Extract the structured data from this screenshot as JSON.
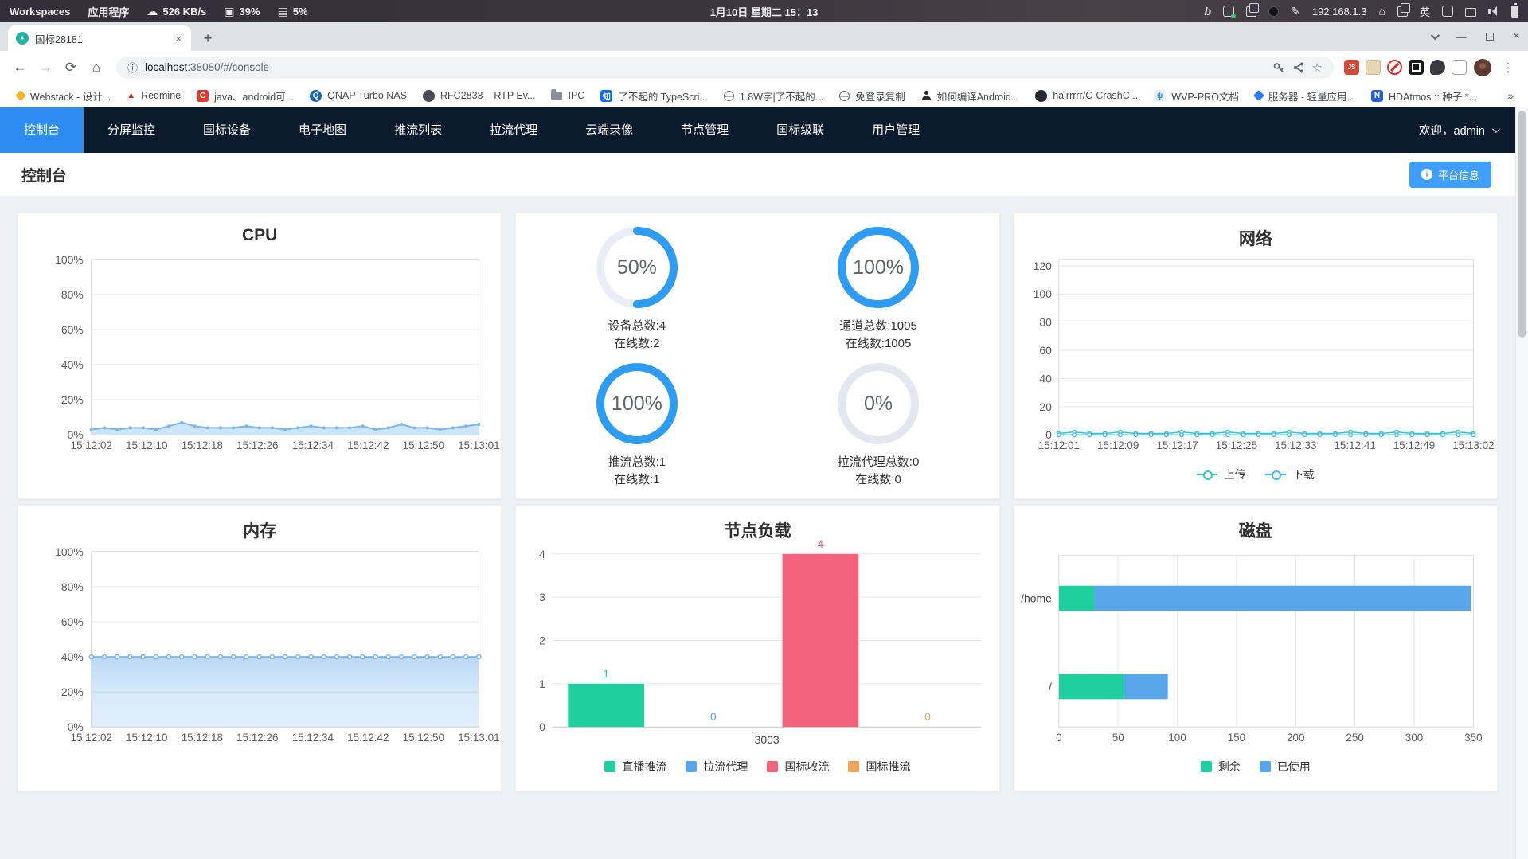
{
  "taskbar": {
    "workspaces": "Workspaces",
    "apps": "应用程序",
    "net_speed": "526 KB/s",
    "cpu_pct": "39%",
    "mem_pct": "5%",
    "clock": "1月10日 星期二 15：13",
    "ip": "192.168.1.3",
    "ime": "英",
    "bing": "b"
  },
  "browser": {
    "tab_title": "国标28181",
    "url_host": "localhost",
    "url_rest": ":38080/#/console",
    "bookmarks_overflow": "»",
    "bookmarks": [
      {
        "label": "Webstack - 设计...",
        "type": "diamond",
        "color": "#f0b429"
      },
      {
        "label": "Redmine",
        "type": "glyph",
        "glyph": "▲",
        "color": "#b3251e"
      },
      {
        "label": "java、android可...",
        "type": "badge",
        "glyph": "C",
        "color": "#e23a2e",
        "fg": "#ffffff"
      },
      {
        "label": "QNAP Turbo NAS",
        "type": "badge-round",
        "glyph": "Q",
        "color": "#1565c0",
        "fg": "#ffffff"
      },
      {
        "label": "RFC2833 – RTP Ev...",
        "type": "badge-round",
        "glyph": "",
        "color": "#4a4a52",
        "fg": "#cccccc"
      },
      {
        "label": "IPC",
        "type": "folder",
        "color": "#8a8f98"
      },
      {
        "label": "了不起的 TypeScri...",
        "type": "badge",
        "glyph": "知",
        "color": "#0b6bff",
        "fg": "#ffffff"
      },
      {
        "label": "1.8W字|了不起的...",
        "type": "globe",
        "color": "#5f6368"
      },
      {
        "label": "免登录复制",
        "type": "globe",
        "color": "#5f6368"
      },
      {
        "label": "如何编译Android...",
        "type": "person",
        "color": "#2b2b2b"
      },
      {
        "label": "hairrrrr/C-CrashC...",
        "type": "badge-round",
        "glyph": "",
        "color": "#24292f",
        "fg": "#ffffff"
      },
      {
        "label": "WVP-PRO文档",
        "type": "badge",
        "glyph": "ψ",
        "color": "#eaf3fd",
        "fg": "#2d8cf0"
      },
      {
        "label": "服务器 - 轻量应用...",
        "type": "diamond",
        "color": "#2f7df6"
      },
      {
        "label": "HDAtmos :: 种子 *...",
        "type": "badge",
        "glyph": "N",
        "color": "#2b5fd9",
        "fg": "#ffffff"
      }
    ]
  },
  "navbar": {
    "items": [
      "控制台",
      "分屏监控",
      "国标设备",
      "电子地图",
      "推流列表",
      "拉流代理",
      "云端录像",
      "节点管理",
      "国标级联",
      "用户管理"
    ],
    "active_index": 0,
    "welcome": "欢迎，admin"
  },
  "header": {
    "title": "控制台",
    "platform_button": "平台信息"
  },
  "rings": [
    {
      "percent": "50%",
      "value": 50,
      "line1": "设备总数:4",
      "line2": "在线数:2",
      "color": "#2f9cf4",
      "track": "#e9edf5"
    },
    {
      "percent": "100%",
      "value": 100,
      "line1": "通道总数:1005",
      "line2": "在线数:1005",
      "color": "#2f9cf4",
      "track": "#e9edf5"
    },
    {
      "percent": "100%",
      "value": 100,
      "line1": "推流总数:1",
      "line2": "在线数:1",
      "color": "#2f9cf4",
      "track": "#e9edf5"
    },
    {
      "percent": "0%",
      "value": 0,
      "line1": "拉流代理总数:0",
      "line2": "在线数:0",
      "color": "#2f9cf4",
      "track": "#e3e7ef"
    }
  ],
  "chart_data": [
    {
      "type": "area",
      "title": "CPU",
      "x_labels": [
        "15:12:02",
        "15:12:10",
        "15:12:18",
        "15:12:26",
        "15:12:34",
        "15:12:42",
        "15:12:50",
        "15:13:01"
      ],
      "y_ticks": [
        "100%",
        "80%",
        "60%",
        "40%",
        "20%",
        "0%"
      ],
      "ylim": [
        0,
        100
      ],
      "values": [
        3,
        4,
        3,
        4,
        4,
        3,
        5,
        7,
        5,
        4,
        4,
        4,
        5,
        4,
        4,
        3,
        4,
        5,
        4,
        4,
        4,
        5,
        3,
        4,
        6,
        4,
        4,
        3,
        4,
        5,
        6
      ],
      "line_color": "#7ab6ec",
      "fill_color": "#cde5f8",
      "grid": true
    },
    {
      "type": "line",
      "title": "网络",
      "x_labels": [
        "15:12:01",
        "15:12:09",
        "15:12:17",
        "15:12:25",
        "15:12:33",
        "15:12:41",
        "15:12:49",
        "15:13:02"
      ],
      "y_ticks": [
        120,
        100,
        80,
        60,
        40,
        20,
        0
      ],
      "ylim": [
        0,
        120
      ],
      "series": [
        {
          "name": "上传",
          "color": "#2ec7c9",
          "values": [
            1,
            2,
            1,
            1,
            2,
            1,
            1,
            1,
            2,
            1,
            1,
            2,
            1,
            1,
            1,
            2,
            1,
            1,
            1,
            2,
            1,
            1,
            2,
            1,
            1,
            1,
            2,
            1
          ]
        },
        {
          "name": "下载",
          "color": "#49b6e8",
          "values": [
            0,
            0,
            0,
            0,
            0,
            0,
            0,
            0,
            0,
            0,
            0,
            0,
            0,
            0,
            0,
            0,
            0,
            0,
            0,
            0,
            0,
            0,
            0,
            0,
            0,
            0,
            0,
            0
          ]
        }
      ],
      "legend_position": "bottom",
      "grid": true
    },
    {
      "type": "area",
      "title": "内存",
      "x_labels": [
        "15:12:02",
        "15:12:10",
        "15:12:18",
        "15:12:26",
        "15:12:34",
        "15:12:42",
        "15:12:50",
        "15:13:01"
      ],
      "y_ticks": [
        "100%",
        "80%",
        "60%",
        "40%",
        "20%",
        "0%"
      ],
      "ylim": [
        0,
        100
      ],
      "values": [
        40,
        40,
        40,
        40,
        40,
        40,
        40,
        40,
        40,
        40,
        40,
        40,
        40,
        40,
        40,
        40,
        40,
        40,
        40,
        40,
        40,
        40,
        40,
        40,
        40,
        40,
        40,
        40,
        40,
        40,
        40
      ],
      "line_color": "#7ab6ec",
      "fill_color": "gradient",
      "markers": "hollow",
      "grid": true
    },
    {
      "type": "bar",
      "title": "节点负载",
      "category": "3003",
      "y_ticks": [
        4,
        3,
        2,
        1,
        0
      ],
      "ylim": [
        0,
        4
      ],
      "series": [
        {
          "name": "直播推流",
          "value": 1,
          "color": "#1fcf9e"
        },
        {
          "name": "拉流代理",
          "value": 0,
          "color": "#59a5ea"
        },
        {
          "name": "国标收流",
          "value": 4,
          "color": "#f2627b"
        },
        {
          "name": "国标推流",
          "value": 0,
          "color": "#f2a45c"
        }
      ],
      "legend_position": "bottom",
      "grid": true
    },
    {
      "type": "hbar-stacked",
      "title": "磁盘",
      "x_ticks": [
        0,
        50,
        100,
        150,
        200,
        250,
        300,
        350
      ],
      "xlim": [
        0,
        350
      ],
      "rows": [
        {
          "label": "/home",
          "free": 30,
          "used": 318
        },
        {
          "label": "/",
          "free": 55,
          "used": 37
        }
      ],
      "legend": [
        {
          "name": "剩余",
          "color": "#1fcf9e"
        },
        {
          "name": "已使用",
          "color": "#59a5ea"
        }
      ],
      "legend_position": "bottom",
      "grid": true
    }
  ]
}
